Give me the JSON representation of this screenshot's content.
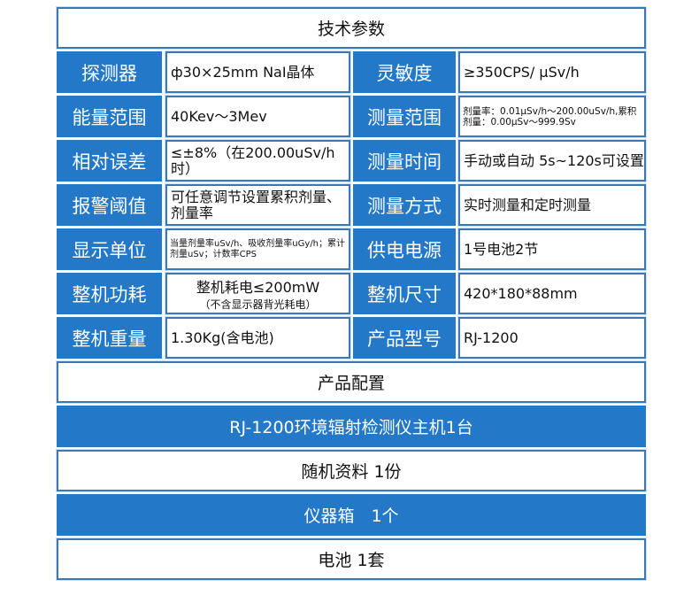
{
  "title": "技术参数",
  "specs": [
    {
      "label1": "探测器",
      "value1": "ф30×25mm NaI晶体",
      "label2": "灵敏度",
      "value2": "≥350CPS/ μSv/h"
    },
    {
      "label1": "能量范围",
      "value1": "40Kev～3Mev",
      "label2": "测量范围",
      "value2": "剂量率：0.01μSv/h～200.00uSv/h,累积剂量：0.00μSv～999.9Sv"
    },
    {
      "label1": "相对误差",
      "value1": "≤±8%（在200.00uSv/h时）",
      "label2": "测量时间",
      "value2": "手动或自动 5s~120s可设置"
    },
    {
      "label1": "报警阈值",
      "value1": "可任意调节设置累积剂量、剂量率",
      "label2": "测量方式",
      "value2": "实时测量和定时测量"
    },
    {
      "label1": "显示单位",
      "value1": "当量剂量率uSv/h、吸收剂量率uGy/h；累计剂量uSv；计数率CPS",
      "label2": "供电电源",
      "value2": "1号电池2节"
    },
    {
      "label1": "整机功耗",
      "value1": "整机耗电≤200mW",
      "value1_note": "（不含显示器背光耗电）",
      "label2": "整机尺寸",
      "value2": "420*180*88mm"
    },
    {
      "label1": "整机重量",
      "value1": "1.30Kg(含电池)",
      "label2": "产品型号",
      "value2": "RJ-1200"
    }
  ],
  "config_title": "产品配置",
  "config_items": [
    "RJ-1200环境辐射检测仪主机1台",
    "随机资料 1份",
    "仪器箱　1个",
    "电池 1套"
  ],
  "colors": {
    "accent": "#2478c8",
    "border": "#3b78b5"
  }
}
